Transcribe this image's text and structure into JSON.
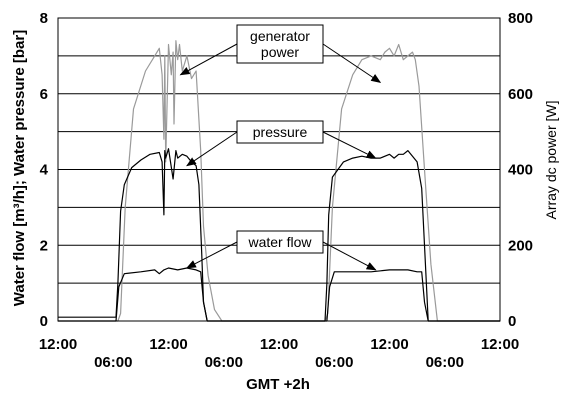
{
  "chart_data": {
    "type": "line",
    "xlabel": "GMT +2h",
    "ylabel_left": "Water flow [m³/h]; Water pressure [bar]",
    "ylabel_right": "Array dc power [W]",
    "ylim_left": [
      0,
      8
    ],
    "ylim_right": [
      0,
      800
    ],
    "xlim_hours": [
      0,
      48
    ],
    "grid": "horizontal",
    "y_ticks_left": [
      "0",
      "2",
      "4",
      "6",
      "8"
    ],
    "y_ticks_right": [
      "0",
      "200",
      "400",
      "600",
      "800"
    ],
    "x_ticks_top": [
      {
        "hour": 0,
        "label": "12:00"
      },
      {
        "hour": 12,
        "label": "12:00"
      },
      {
        "hour": 24,
        "label": "12:00"
      },
      {
        "hour": 36,
        "label": "12:00"
      },
      {
        "hour": 48,
        "label": "12:00"
      }
    ],
    "x_ticks_bottom": [
      {
        "hour": 6,
        "label": "06:00"
      },
      {
        "hour": 18,
        "label": "06:00"
      },
      {
        "hour": 30,
        "label": "06:00"
      },
      {
        "hour": 42,
        "label": "06:00"
      }
    ],
    "series": [
      {
        "key": "power",
        "axis": "right",
        "color": "#9a9a9a",
        "x": [
          0,
          6.5,
          6.8,
          7.3,
          8.2,
          9.5,
          10.5,
          11.0,
          11.3,
          11.5,
          11.6,
          11.7,
          12.0,
          12.3,
          12.5,
          12.6,
          12.8,
          13.0,
          13.2,
          13.5,
          14.0,
          14.5,
          15.0,
          15.5,
          15.8,
          16.3,
          17.0,
          17.8,
          18.5,
          24,
          29.0,
          29.3,
          29.8,
          30.8,
          32.0,
          33.0,
          34.0,
          35.0,
          35.5,
          36.0,
          36.5,
          37.0,
          37.5,
          38.0,
          38.5,
          38.8,
          39.2,
          39.8,
          40.5,
          41.2,
          48
        ],
        "values": [
          0,
          0,
          20,
          300,
          560,
          660,
          700,
          720,
          650,
          480,
          700,
          420,
          730,
          650,
          710,
          520,
          740,
          690,
          730,
          660,
          700,
          640,
          660,
          450,
          250,
          120,
          30,
          0,
          0,
          0,
          0,
          20,
          300,
          560,
          650,
          690,
          700,
          690,
          710,
          720,
          700,
          730,
          690,
          700,
          710,
          690,
          620,
          400,
          150,
          0,
          0
        ]
      },
      {
        "key": "pressure",
        "axis": "left",
        "color": "#000000",
        "x": [
          0,
          6.3,
          6.5,
          6.8,
          7.2,
          8.0,
          9.0,
          10.0,
          11.0,
          11.3,
          11.5,
          11.6,
          11.7,
          12.0,
          12.5,
          12.8,
          13.0,
          13.5,
          14.0,
          14.5,
          15.0,
          15.3,
          15.6,
          15.8,
          16.2,
          24,
          29.0,
          29.2,
          29.4,
          29.8,
          31.0,
          32.0,
          33.0,
          34.0,
          35.0,
          36.0,
          36.5,
          37.0,
          37.5,
          38.0,
          38.5,
          39.0,
          39.5,
          39.8,
          40.2,
          48
        ],
        "values": [
          0.1,
          0.1,
          1.0,
          2.9,
          3.6,
          4.05,
          4.25,
          4.4,
          4.45,
          4.2,
          2.8,
          4.5,
          4.3,
          4.55,
          3.75,
          4.5,
          4.3,
          4.4,
          4.35,
          4.2,
          4.1,
          3.6,
          1.8,
          0.5,
          0.0,
          0.0,
          0.0,
          1.0,
          2.8,
          3.8,
          4.2,
          4.3,
          4.35,
          4.3,
          4.3,
          4.4,
          4.3,
          4.4,
          4.4,
          4.5,
          4.35,
          4.2,
          3.5,
          2.0,
          0.0,
          0.0
        ]
      },
      {
        "key": "flow",
        "axis": "left",
        "color": "#000000",
        "x": [
          0,
          6.3,
          6.6,
          7.2,
          9.0,
          10.5,
          11.0,
          11.5,
          12.0,
          13.0,
          14.0,
          15.0,
          15.5,
          15.8,
          16.2,
          24,
          29.2,
          29.5,
          30.0,
          32.0,
          34.0,
          36.0,
          38.0,
          39.0,
          39.5,
          39.8,
          40.2,
          48
        ],
        "values": [
          0,
          0,
          0.9,
          1.25,
          1.3,
          1.35,
          1.25,
          1.35,
          1.4,
          1.35,
          1.4,
          1.35,
          1.3,
          0.5,
          0,
          0,
          0,
          0.9,
          1.3,
          1.3,
          1.3,
          1.35,
          1.35,
          1.3,
          1.3,
          0.5,
          0,
          0
        ]
      }
    ],
    "annotations": [
      {
        "label_lines": [
          "generator",
          "power"
        ],
        "targets": [
          {
            "hour": 13.3,
            "value": 6.5
          },
          {
            "hour": 35.0,
            "value": 6.3
          }
        ]
      },
      {
        "label_lines": [
          "pressure"
        ],
        "targets": [
          {
            "hour": 14.0,
            "value": 4.1
          },
          {
            "hour": 34.5,
            "value": 4.3
          }
        ]
      },
      {
        "label_lines": [
          "water flow"
        ],
        "targets": [
          {
            "hour": 14.0,
            "value": 1.4
          },
          {
            "hour": 34.5,
            "value": 1.35
          }
        ]
      }
    ]
  }
}
